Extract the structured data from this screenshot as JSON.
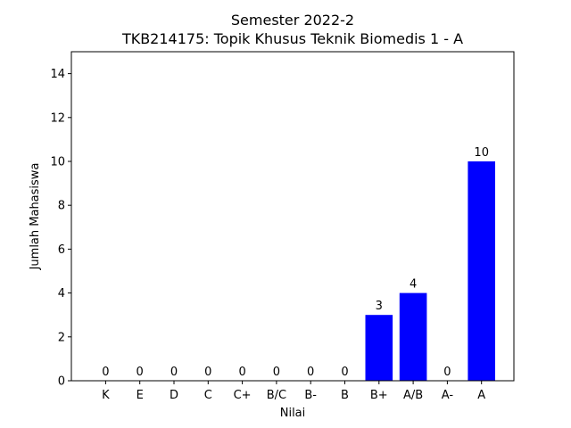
{
  "chart_data": {
    "type": "bar",
    "title": "Semester 2022-2",
    "subtitle": "TKB214175: Topik Khusus Teknik Biomedis 1 - A",
    "xlabel": "Nilai",
    "ylabel": "Jumlah Mahasiswa",
    "categories": [
      "K",
      "E",
      "D",
      "C",
      "C+",
      "B/C",
      "B-",
      "B",
      "B+",
      "A/B",
      "A-",
      "A"
    ],
    "values": [
      0,
      0,
      0,
      0,
      0,
      0,
      0,
      0,
      3,
      4,
      0,
      10
    ],
    "ylim": [
      0,
      15
    ],
    "yticks": [
      0,
      2,
      4,
      6,
      8,
      10,
      12,
      14
    ],
    "bar_color": "#0000ff",
    "grid": false,
    "legend": false
  }
}
